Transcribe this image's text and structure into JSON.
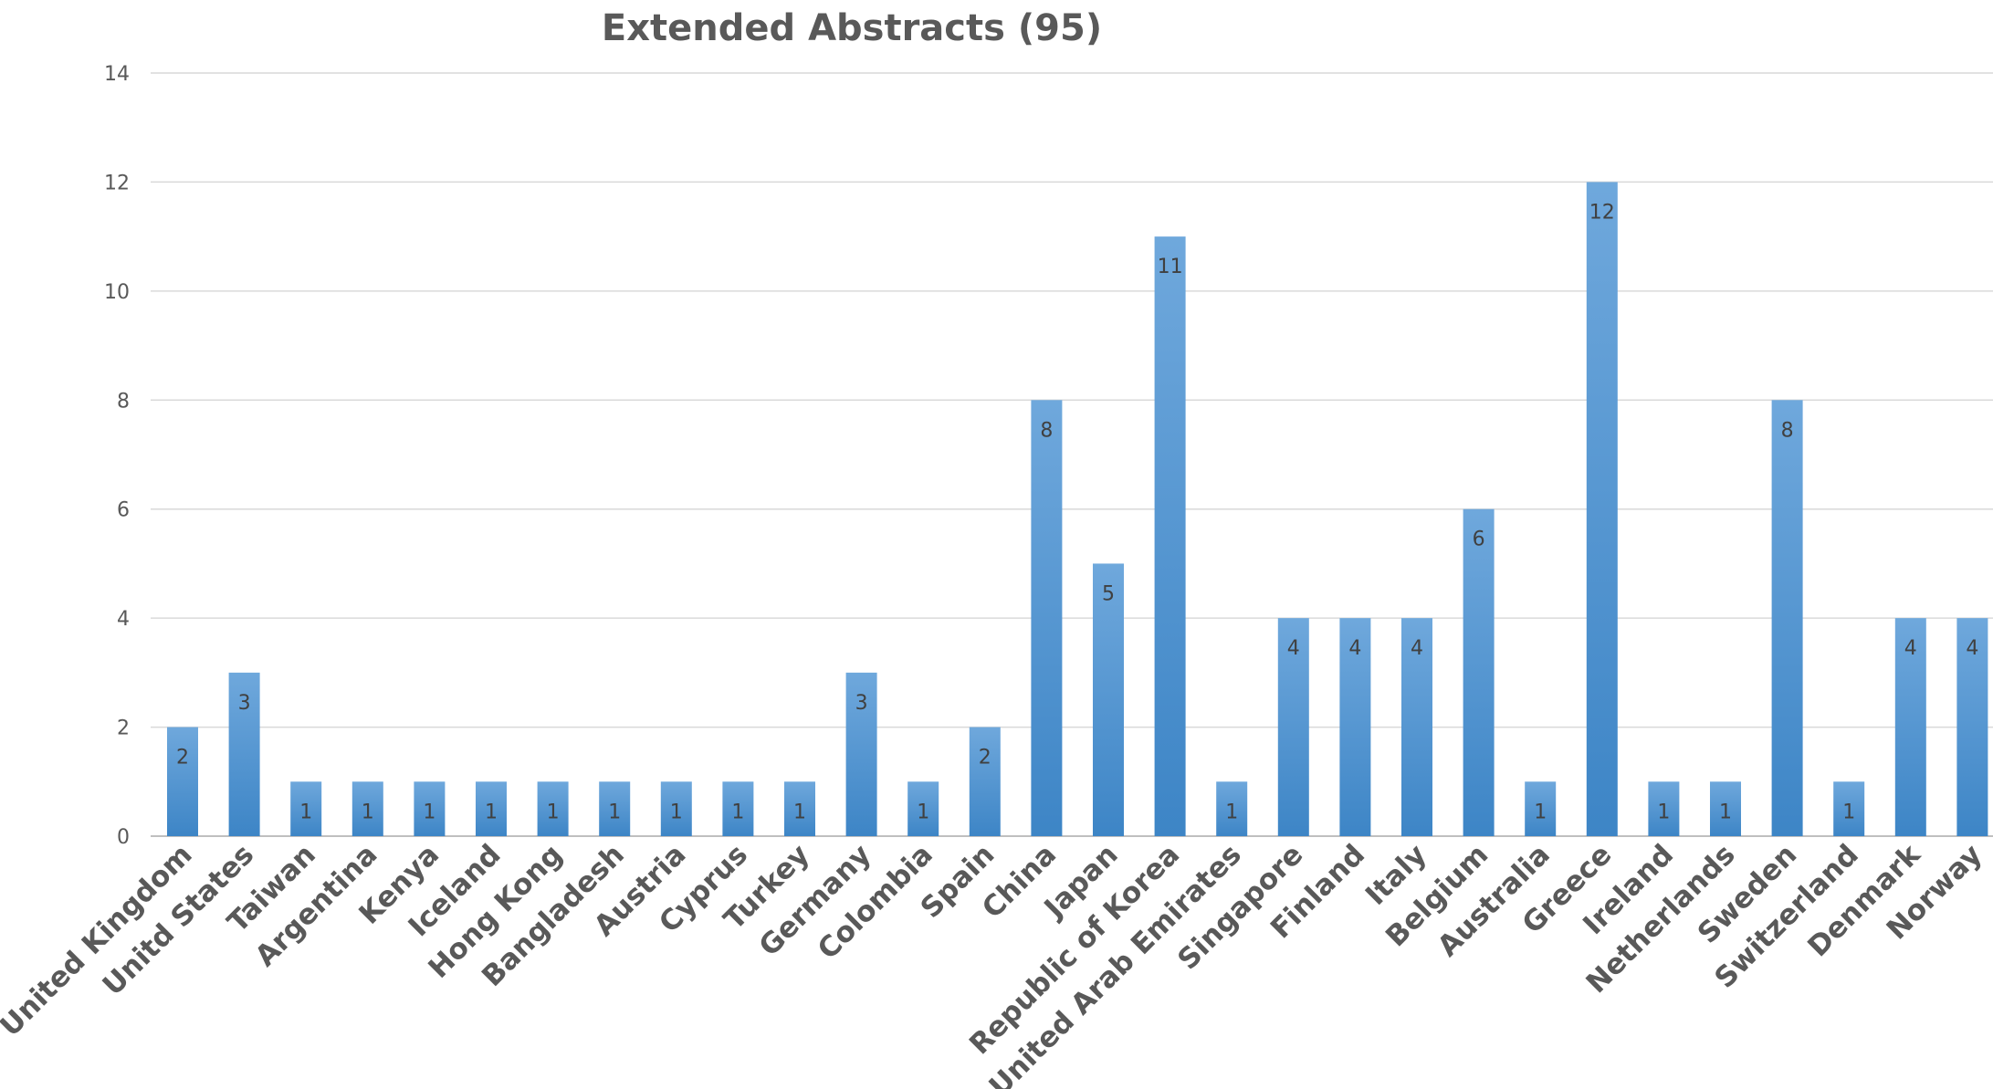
{
  "chart_data": {
    "type": "bar",
    "title": "Extended Abstracts (95)",
    "xlabel": "",
    "ylabel": "",
    "ylim": [
      0,
      14
    ],
    "yticks": [
      0,
      2,
      4,
      6,
      8,
      10,
      12,
      14
    ],
    "grid": true,
    "legend": "none",
    "bar_color_top": "#6fa8dc",
    "bar_color_bottom": "#3d85c6",
    "categories": [
      "United Kingdom",
      "Unitd States",
      "Taiwan",
      "Argentina",
      "Kenya",
      "Iceland",
      "Hong Kong",
      "Bangladesh",
      "Austria",
      "Cyprus",
      "Turkey",
      "Germany",
      "Colombia",
      "Spain",
      "China",
      "Japan",
      "Republic of Korea",
      "United Arab Emirates",
      "Singapore",
      "Finland",
      "Italy",
      "Belgium",
      "Australia",
      "Greece",
      "Ireland",
      "Netherlands",
      "Sweden",
      "Switzerland",
      "Denmark",
      "Norway"
    ],
    "values": [
      2,
      3,
      1,
      1,
      1,
      1,
      1,
      1,
      1,
      1,
      1,
      3,
      1,
      2,
      8,
      5,
      11,
      1,
      4,
      4,
      4,
      6,
      1,
      12,
      1,
      1,
      8,
      1,
      4,
      4
    ]
  }
}
